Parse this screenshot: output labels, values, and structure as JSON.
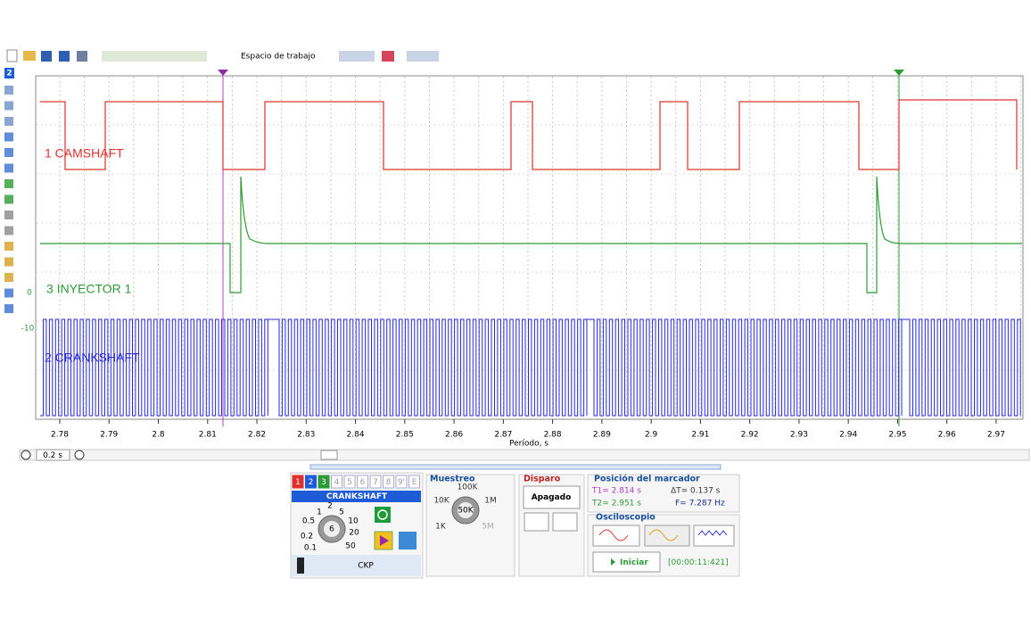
{
  "toolbar": {
    "workspace": "Espacio de trabajo"
  },
  "side_toolbar": {
    "channel": "2"
  },
  "plot": {
    "channels": [
      "1 CAMSHAFT",
      "3 INYECTOR 1",
      "2 CRANKSHAFT"
    ],
    "y_labels": [
      "0",
      "-10"
    ],
    "x_ticks": [
      "2.78",
      "2.79",
      "2.8",
      "2.81",
      "2.82",
      "2.83",
      "2.84",
      "2.85",
      "2.86",
      "2.87",
      "2.88",
      "2.89",
      "2.9",
      "2.91",
      "2.92",
      "2.93",
      "2.94",
      "2.95",
      "2.96",
      "2.97"
    ],
    "x_axis_title": "Período, s"
  },
  "zoom": {
    "period": "0.2 s"
  },
  "channel_panel": {
    "tabs": [
      "1",
      "2",
      "3",
      "4",
      "5",
      "6",
      "7",
      "8",
      "9'",
      "E"
    ],
    "name": "CRANKSHAFT",
    "knob_labels": [
      "1",
      "2",
      "5",
      "10",
      "20",
      "50",
      "0.5",
      "0.2",
      "0.1"
    ],
    "knob_value": "6",
    "probe": "CKP"
  },
  "sampling": {
    "title": "Muestreo",
    "labels": [
      "100K",
      "10K",
      "1M",
      "1K",
      "5M"
    ],
    "value": "50K"
  },
  "trigger": {
    "title": "Disparo",
    "mode": "Apagado"
  },
  "marker": {
    "title": "Posición del marcador",
    "t1": "T1= 2.814 s",
    "dt": "ΔT= 0.137 s",
    "t2": "T2= 2.951 s",
    "freq": "F= 7.287 Hz"
  },
  "scope": {
    "title": "Osciloscopio",
    "start": "Iniciar",
    "timer": "[00:00:11:421]"
  }
}
